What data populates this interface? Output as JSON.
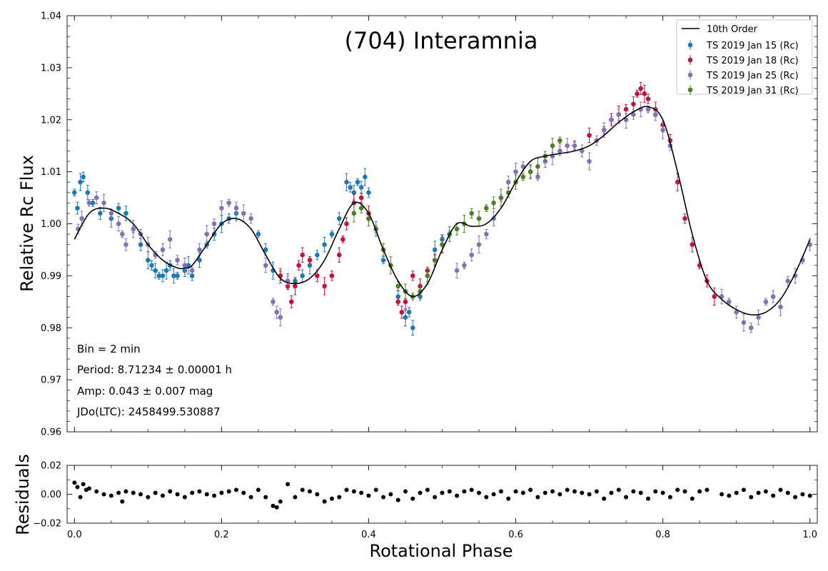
{
  "chart_data": [
    {
      "type": "scatter",
      "panel": "main",
      "title": "(704) Interamnia",
      "xlabel": "",
      "ylabel": "Relative  Rc  Flux",
      "xlim": [
        -0.01,
        1.01
      ],
      "ylim": [
        0.96,
        1.04
      ],
      "xticks": [
        0.0,
        0.2,
        0.4,
        0.6,
        0.8,
        1.0
      ],
      "xtick_labels": [
        "",
        "",
        "",
        "",
        "",
        ""
      ],
      "yticks": [
        0.96,
        0.97,
        0.98,
        0.99,
        1.0,
        1.01,
        1.02,
        1.03,
        1.04
      ],
      "ytick_labels": [
        "0.96",
        "0.97",
        "0.98",
        "0.99",
        "1.00",
        "1.01",
        "1.02",
        "1.03",
        "1.04"
      ],
      "legend_position": "top-right",
      "fit": {
        "name": "10th Order",
        "color": "#000000",
        "x": [
          0.0,
          0.02,
          0.04,
          0.06,
          0.08,
          0.1,
          0.12,
          0.14,
          0.15,
          0.16,
          0.18,
          0.2,
          0.22,
          0.24,
          0.26,
          0.28,
          0.3,
          0.32,
          0.34,
          0.36,
          0.38,
          0.4,
          0.42,
          0.44,
          0.46,
          0.48,
          0.5,
          0.52,
          0.54,
          0.56,
          0.58,
          0.6,
          0.62,
          0.64,
          0.66,
          0.68,
          0.7,
          0.72,
          0.74,
          0.76,
          0.78,
          0.8,
          0.82,
          0.84,
          0.86,
          0.88,
          0.9,
          0.92,
          0.94,
          0.96,
          0.98,
          1.0
        ],
        "y": [
          0.997,
          1.002,
          1.003,
          1.002,
          1.0,
          0.996,
          0.993,
          0.9915,
          0.9915,
          0.992,
          0.996,
          1.0,
          1.001,
          0.999,
          0.994,
          0.9895,
          0.9885,
          0.9895,
          0.993,
          0.999,
          1.004,
          1.002,
          0.995,
          0.989,
          0.986,
          0.9885,
          0.995,
          1.0,
          0.9995,
          1.0,
          1.003,
          1.008,
          1.012,
          1.013,
          1.0135,
          1.014,
          1.015,
          1.017,
          1.0195,
          1.0215,
          1.0225,
          1.02,
          1.01,
          0.998,
          0.989,
          0.9855,
          0.9835,
          0.9825,
          0.983,
          0.9855,
          0.9905,
          0.997
        ]
      },
      "series": [
        {
          "name": "TS 2019 Jan 15  (Rc)",
          "color": "#1f77b4",
          "x": [
            0.0,
            0.004,
            0.008,
            0.012,
            0.018,
            0.025,
            0.035,
            0.05,
            0.06,
            0.07,
            0.08,
            0.09,
            0.1,
            0.105,
            0.11,
            0.115,
            0.12,
            0.125,
            0.13,
            0.135,
            0.14,
            0.15,
            0.155,
            0.16,
            0.17,
            0.18,
            0.19,
            0.2,
            0.21,
            0.22,
            0.25,
            0.26,
            0.27,
            0.28,
            0.29,
            0.3,
            0.31,
            0.32,
            0.33,
            0.34,
            0.35,
            0.36,
            0.37,
            0.375,
            0.38,
            0.385,
            0.39,
            0.395,
            0.4,
            0.41,
            0.42,
            0.44,
            0.45,
            0.455,
            0.46,
            0.47,
            0.48,
            0.49,
            0.5,
            0.51
          ],
          "y": [
            1.006,
            1.003,
            1.008,
            1.009,
            1.006,
            1.004,
            1.002,
            1.001,
            1.003,
            1.002,
            0.999,
            0.996,
            0.993,
            0.992,
            0.991,
            0.99,
            0.99,
            0.991,
            0.992,
            0.99,
            0.99,
            0.991,
            0.992,
            0.99,
            0.993,
            0.996,
            0.998,
            1.0,
            1.001,
            1.002,
            0.998,
            0.995,
            0.991,
            0.99,
            0.989,
            0.989,
            0.99,
            0.992,
            0.994,
            0.996,
            0.998,
            1.001,
            1.008,
            1.007,
            1.006,
            1.008,
            1.007,
            1.009,
            1.006,
            0.999,
            0.993,
            0.986,
            0.982,
            0.983,
            0.98,
            0.986,
            0.99,
            0.995,
            0.997,
            0.998
          ]
        },
        {
          "name": "TS 2019 Jan 18  (Rc)",
          "color": "#c0143c",
          "x": [
            0.28,
            0.29,
            0.295,
            0.3,
            0.305,
            0.31,
            0.32,
            0.33,
            0.34,
            0.35,
            0.36,
            0.365,
            0.37,
            0.38,
            0.39,
            0.4,
            0.44,
            0.445,
            0.45,
            0.46,
            0.47,
            0.48,
            0.49,
            0.5,
            0.68,
            0.7,
            0.72,
            0.73,
            0.74,
            0.75,
            0.76,
            0.765,
            0.77,
            0.775,
            0.78,
            0.79,
            0.8,
            0.81,
            0.82,
            0.83,
            0.84,
            0.85,
            0.86,
            0.87
          ],
          "y": [
            0.99,
            0.988,
            0.985,
            0.988,
            0.992,
            0.994,
            0.993,
            0.99,
            0.988,
            0.99,
            0.994,
            0.997,
            1.0,
            1.004,
            1.005,
            1.002,
            0.985,
            0.983,
            0.985,
            0.99,
            0.988,
            0.991,
            0.993,
            0.996,
            1.015,
            1.017,
            1.018,
            1.02,
            1.021,
            1.022,
            1.023,
            1.025,
            1.026,
            1.025,
            1.024,
            1.022,
            1.019,
            1.016,
            1.008,
            1.001,
            0.996,
            0.992,
            0.989,
            0.986
          ]
        },
        {
          "name": "TS 2019 Jan 25  (Rc)",
          "color": "#8470b4",
          "x": [
            0.005,
            0.01,
            0.02,
            0.03,
            0.04,
            0.05,
            0.06,
            0.065,
            0.07,
            0.08,
            0.09,
            0.1,
            0.11,
            0.12,
            0.13,
            0.14,
            0.15,
            0.16,
            0.17,
            0.18,
            0.19,
            0.2,
            0.21,
            0.22,
            0.23,
            0.24,
            0.26,
            0.27,
            0.275,
            0.28,
            0.29,
            0.52,
            0.53,
            0.54,
            0.55,
            0.56,
            0.57,
            0.58,
            0.59,
            0.6,
            0.61,
            0.62,
            0.63,
            0.64,
            0.65,
            0.66,
            0.67,
            0.68,
            0.69,
            0.7,
            0.71,
            0.72,
            0.73,
            0.74,
            0.75,
            0.76,
            0.77,
            0.78,
            0.79,
            0.8,
            0.81,
            0.88,
            0.89,
            0.9,
            0.91,
            0.92,
            0.93,
            0.94,
            0.95,
            0.96,
            0.97,
            0.98,
            0.99,
            1.0
          ],
          "y": [
            0.999,
            1.001,
            1.004,
            1.005,
            1.004,
            1.002,
            1.0,
            0.998,
            0.996,
            0.999,
            0.998,
            0.996,
            0.994,
            0.995,
            0.997,
            0.993,
            0.992,
            0.991,
            0.995,
            0.998,
            1.0,
            1.003,
            1.004,
            1.003,
            1.002,
            1.001,
            0.992,
            0.985,
            0.983,
            0.982,
            0.989,
            0.991,
            0.992,
            0.994,
            0.996,
            0.998,
            1.001,
            1.005,
            1.008,
            1.01,
            1.011,
            1.01,
            1.009,
            1.012,
            1.013,
            1.014,
            1.015,
            1.015,
            1.014,
            1.012,
            1.016,
            1.018,
            1.02,
            1.021,
            1.02,
            1.021,
            1.022,
            1.022,
            1.021,
            1.018,
            1.015,
            0.986,
            0.985,
            0.983,
            0.981,
            0.98,
            0.982,
            0.985,
            0.986,
            0.984,
            0.989,
            0.99,
            0.993,
            0.996
          ]
        },
        {
          "name": "TS 2019 Jan 31  (Rc)",
          "color": "#4e7f25",
          "x": [
            0.38,
            0.39,
            0.4,
            0.41,
            0.42,
            0.43,
            0.44,
            0.45,
            0.46,
            0.47,
            0.48,
            0.49,
            0.5,
            0.51,
            0.52,
            0.53,
            0.54,
            0.55,
            0.56,
            0.57,
            0.58,
            0.59,
            0.6,
            0.61,
            0.62,
            0.63,
            0.64,
            0.65,
            0.66
          ],
          "y": [
            1.002,
            1.003,
            1.001,
            0.999,
            0.995,
            0.992,
            0.988,
            0.987,
            0.986,
            0.987,
            0.99,
            0.993,
            0.996,
            0.998,
            0.999,
            1.0,
            1.002,
            1.001,
            1.003,
            1.004,
            1.005,
            1.006,
            1.008,
            1.009,
            1.01,
            1.011,
            1.013,
            1.015,
            1.016
          ]
        }
      ],
      "annotations": {
        "bin": "Bin = 2 min",
        "period": "Period: 8.71234 ± 0.00001 h",
        "amp": "Amp: 0.043 ± 0.007 mag",
        "jdo": "JDo(LTC): 2458499.530887"
      }
    },
    {
      "type": "scatter",
      "panel": "residuals",
      "xlabel": "Rotational Phase",
      "ylabel": "Residuals",
      "xlim": [
        -0.01,
        1.01
      ],
      "ylim": [
        -0.02,
        0.02
      ],
      "xticks": [
        0.0,
        0.2,
        0.4,
        0.6,
        0.8,
        1.0
      ],
      "xtick_labels": [
        "0.0",
        "0.2",
        "0.4",
        "0.6",
        "0.8",
        "1.0"
      ],
      "yticks": [
        -0.02,
        0.0,
        0.02
      ],
      "ytick_labels": [
        "−0.02",
        "0.00",
        "0.02"
      ],
      "series": [
        {
          "name": "residuals",
          "color": "#000000",
          "x": [
            0.0,
            0.004,
            0.008,
            0.012,
            0.016,
            0.02,
            0.03,
            0.04,
            0.05,
            0.06,
            0.065,
            0.07,
            0.08,
            0.09,
            0.1,
            0.11,
            0.12,
            0.13,
            0.14,
            0.15,
            0.16,
            0.17,
            0.18,
            0.19,
            0.2,
            0.21,
            0.22,
            0.23,
            0.24,
            0.25,
            0.26,
            0.27,
            0.275,
            0.28,
            0.29,
            0.3,
            0.31,
            0.32,
            0.33,
            0.34,
            0.35,
            0.36,
            0.37,
            0.38,
            0.39,
            0.4,
            0.41,
            0.42,
            0.43,
            0.44,
            0.45,
            0.46,
            0.47,
            0.48,
            0.49,
            0.5,
            0.51,
            0.52,
            0.53,
            0.54,
            0.55,
            0.56,
            0.57,
            0.58,
            0.59,
            0.6,
            0.61,
            0.62,
            0.63,
            0.64,
            0.65,
            0.66,
            0.67,
            0.68,
            0.69,
            0.7,
            0.71,
            0.72,
            0.73,
            0.74,
            0.75,
            0.76,
            0.77,
            0.78,
            0.79,
            0.8,
            0.81,
            0.82,
            0.83,
            0.84,
            0.85,
            0.86,
            0.88,
            0.89,
            0.9,
            0.91,
            0.92,
            0.93,
            0.94,
            0.95,
            0.96,
            0.97,
            0.98,
            0.99,
            1.0
          ],
          "y": [
            0.008,
            0.005,
            -0.002,
            0.007,
            0.003,
            0.004,
            0.002,
            0.0,
            -0.001,
            0.001,
            -0.005,
            0.002,
            0.001,
            0.0,
            -0.002,
            0.001,
            -0.001,
            0.002,
            0.0,
            -0.002,
            0.001,
            0.002,
            0.0,
            -0.001,
            0.001,
            0.002,
            0.003,
            0.001,
            -0.002,
            0.003,
            -0.002,
            -0.008,
            -0.009,
            -0.005,
            0.007,
            -0.002,
            0.003,
            0.002,
            0.0,
            -0.005,
            -0.003,
            -0.002,
            0.003,
            0.002,
            0.001,
            -0.001,
            0.003,
            -0.002,
            0.0,
            -0.004,
            0.002,
            -0.003,
            0.001,
            0.003,
            -0.002,
            0.001,
            0.002,
            -0.001,
            0.002,
            0.003,
            0.001,
            -0.002,
            0.0,
            0.002,
            -0.003,
            0.002,
            0.001,
            0.003,
            -0.002,
            0.001,
            0.002,
            0.0,
            0.003,
            0.002,
            0.001,
            0.0,
            0.002,
            -0.003,
            0.001,
            0.003,
            -0.002,
            0.002,
            0.001,
            -0.003,
            0.002,
            0.001,
            -0.002,
            0.003,
            0.002,
            -0.003,
            0.002,
            0.003,
            0.0,
            -0.001,
            0.001,
            0.003,
            -0.002,
            0.001,
            0.002,
            -0.001,
            0.003,
            0.001,
            -0.002,
            0.0,
            -0.001
          ]
        }
      ]
    }
  ]
}
